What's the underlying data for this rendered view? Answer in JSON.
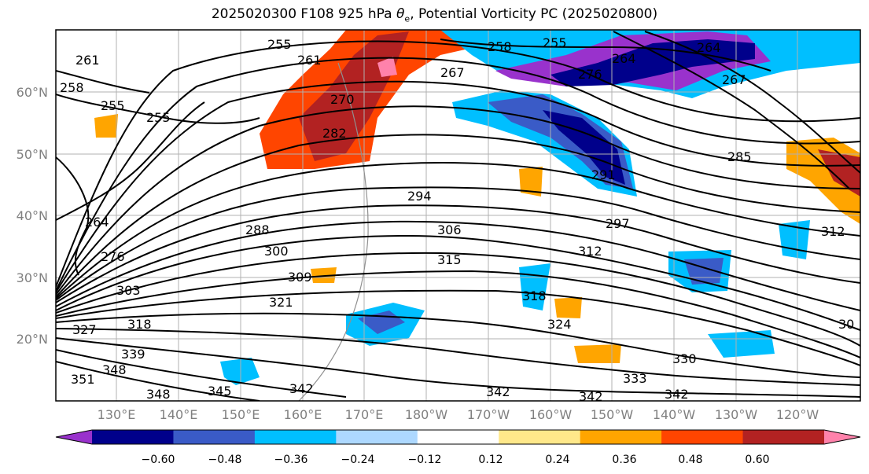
{
  "title": {
    "main": "2025020300 F108 925 hPa ",
    "theta": "θ",
    "sub": "e",
    "rest": ", Potential Vorticity PC (2025020800)"
  },
  "lat_labels": [
    "60°N",
    "50°N",
    "40°N",
    "30°N",
    "20°N"
  ],
  "lon_labels": [
    "130°E",
    "140°E",
    "150°E",
    "160°E",
    "170°E",
    "180°W",
    "170°W",
    "160°W",
    "150°W",
    "140°W",
    "130°W",
    "120°W"
  ],
  "contour_labels": [
    "261",
    "258",
    "255",
    "255",
    "255",
    "258",
    "255",
    "267",
    "270",
    "282",
    "276",
    "264",
    "264",
    "267",
    "285",
    "291",
    "294",
    "288",
    "297",
    "306",
    "300",
    "312",
    "315",
    "303",
    "309",
    "321",
    "327",
    "318",
    "318",
    "324",
    "330",
    "339",
    "348",
    "351",
    "348",
    "345",
    "342",
    "342",
    "333",
    "342",
    "342",
    "30",
    "261",
    "264",
    "276",
    "312"
  ],
  "colorbar": {
    "colors": [
      "#9932cc",
      "#00008b",
      "#3a5bc7",
      "#00bfff",
      "#add8ff",
      "#ffffff",
      "#ffe88a",
      "#ffa500",
      "#ff4500",
      "#b22222",
      "#ff82ab"
    ],
    "tick_labels": [
      "−0.60",
      "−0.48",
      "−0.36",
      "−0.24",
      "−0.12",
      "0.12",
      "0.24",
      "0.36",
      "0.48",
      "0.60"
    ]
  },
  "style": {
    "grid_color": "#b0b0b0",
    "contour_color": "#000000",
    "label_color": "#808080"
  }
}
